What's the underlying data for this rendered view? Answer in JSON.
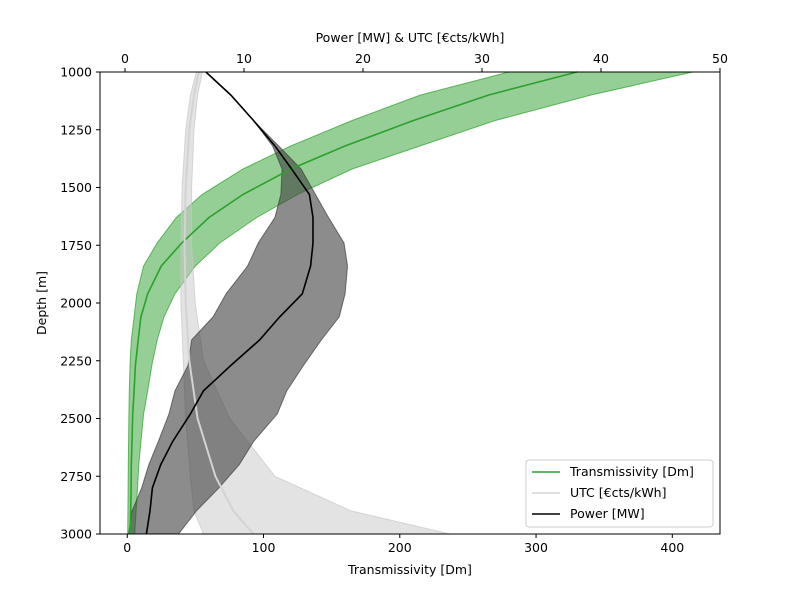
{
  "chart_data": {
    "type": "line",
    "bottom_axis": {
      "label": "Transmissivity [Dm]",
      "range": [
        -20,
        435
      ],
      "ticks": [
        0,
        100,
        200,
        300,
        400
      ],
      "label_color": "#2ca02c"
    },
    "top_axis": {
      "label": "Power [MW] & UTC [€cts/kWh]",
      "range": [
        -2.1,
        50
      ],
      "ticks": [
        0,
        10,
        20,
        30,
        40,
        50
      ]
    },
    "y_axis": {
      "label": "Depth [m]",
      "range": [
        1000,
        3000
      ],
      "inverted": true,
      "ticks": [
        1000,
        1250,
        1500,
        1750,
        2000,
        2250,
        2500,
        2750,
        3000
      ]
    },
    "series": [
      {
        "name": "Transmissivity [Dm]",
        "axis": "bottom",
        "color": "#2ca02c",
        "band_color": "#2ca02c",
        "depth": [
          1000,
          1100,
          1210,
          1320,
          1420,
          1530,
          1630,
          1740,
          1840,
          1960,
          2060,
          2160,
          2270,
          2380,
          2480,
          2600,
          2700,
          2800,
          2900,
          3000
        ],
        "values": [
          330,
          265,
          210,
          160,
          120,
          85,
          60,
          40,
          25,
          15,
          10,
          8,
          6,
          5,
          4,
          3.5,
          3,
          2.8,
          2.5,
          2
        ],
        "lower": [
          280,
          215,
          165,
          120,
          85,
          55,
          36,
          22,
          12,
          7,
          5,
          3,
          2,
          1.5,
          1.2,
          1,
          0.8,
          0.6,
          0.5,
          0.3
        ],
        "upper": [
          415,
          340,
          270,
          215,
          165,
          125,
          95,
          68,
          50,
          35,
          27,
          22,
          18,
          15,
          12,
          10,
          8.5,
          7.5,
          6.5,
          5.5
        ]
      },
      {
        "name": "UTC [€cts/kWh]",
        "axis": "top",
        "color": "#d3d3d3",
        "band_color": "#c8c8c8",
        "depth": [
          1000,
          1100,
          1250,
          1500,
          1750,
          2000,
          2250,
          2500,
          2750,
          2900,
          3000
        ],
        "values": [
          6.2,
          5.8,
          5.4,
          5.1,
          5.0,
          5.1,
          5.4,
          6.1,
          7.6,
          9.1,
          10.8
        ],
        "lower": [
          6.0,
          5.5,
          5.1,
          4.8,
          4.7,
          4.7,
          4.9,
          5.1,
          5.5,
          5.8,
          6.6
        ],
        "upper": [
          6.5,
          6.1,
          5.8,
          5.6,
          5.6,
          5.9,
          6.6,
          8.8,
          12.6,
          19.0,
          27.3
        ]
      },
      {
        "name": "Power [MW]",
        "axis": "top",
        "color": "#000000",
        "band_color": "#3f3f3f",
        "depth": [
          1000,
          1100,
          1210,
          1320,
          1420,
          1530,
          1630,
          1740,
          1840,
          1960,
          2060,
          2160,
          2270,
          2380,
          2480,
          2600,
          2700,
          2800,
          2900,
          3000
        ],
        "values": [
          6.8,
          8.9,
          10.8,
          12.6,
          14.0,
          15.5,
          15.8,
          15.8,
          15.6,
          14.9,
          13.0,
          11.3,
          8.9,
          6.6,
          5.5,
          4.0,
          3.0,
          2.3,
          2.1,
          1.8
        ],
        "lower": [
          6.8,
          8.9,
          10.8,
          12.4,
          13.2,
          13.1,
          12.6,
          11.2,
          10.3,
          8.5,
          7.4,
          5.6,
          5.3,
          4.2,
          3.7,
          2.8,
          2.0,
          1.4,
          0.6,
          0.3
        ],
        "upper": [
          6.8,
          8.9,
          10.8,
          12.9,
          14.8,
          16.0,
          17.1,
          18.4,
          18.7,
          18.5,
          18.0,
          16.5,
          15.0,
          13.6,
          12.8,
          10.8,
          9.6,
          7.9,
          6.0,
          4.5
        ]
      }
    ],
    "legend": {
      "position": "bottom-right"
    }
  }
}
